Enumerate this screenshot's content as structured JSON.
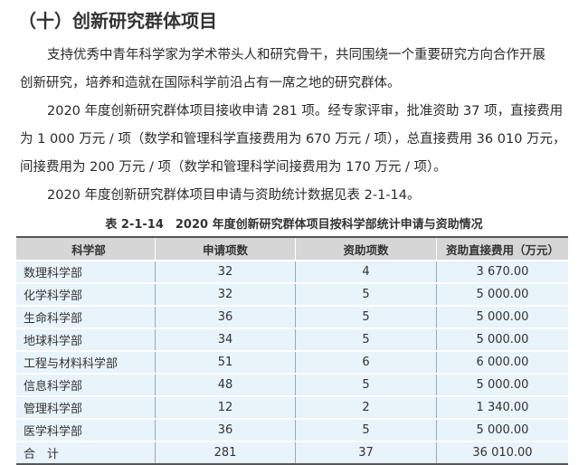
{
  "heading": "（十）创新研究群体项目",
  "paragraphs": [
    "支持优秀中青年科学家为学术带头人和研究骨干，共同围绕一个重要研究方向合作开展",
    "创新研究，培养和造就在国际科学前沿占有一席之地的研究群体。",
    "2020 年度创新研究群体项目接收申请 281 项。经专家评审，批准资助 37 项，直接费用",
    "为 1 000 万元 / 项（数学和管理科学直接费用为 670 万元 / 项），总直接费用 36 010 万元，",
    "间接费用为 200 万元 / 项（数学和管理科学间接费用为 170 万元 / 项）。",
    "2020 年度创新研究群体项目申请与资助统计数据见表 2-1-14。"
  ],
  "table": {
    "caption": "表 2-1-14　2020 年度创新研究群体项目按科学部统计申请与资助情况",
    "headers": [
      "科学部",
      "申请项数",
      "资助项数",
      "资助直接费用（万元）"
    ],
    "rows": [
      [
        "数理科学部",
        "32",
        "4",
        "3 670.00"
      ],
      [
        "化学科学部",
        "32",
        "5",
        "5 000.00"
      ],
      [
        "生命科学部",
        "36",
        "5",
        "5 000.00"
      ],
      [
        "地球科学部",
        "34",
        "5",
        "5 000.00"
      ],
      [
        "工程与材料科学部",
        "51",
        "6",
        "6 000.00"
      ],
      [
        "信息科学部",
        "48",
        "5",
        "5 000.00"
      ],
      [
        "管理科学部",
        "12",
        "2",
        "1 340.00"
      ],
      [
        "医学科学部",
        "36",
        "5",
        "5 000.00"
      ],
      [
        "合　计",
        "281",
        "37",
        "36 010.00"
      ]
    ]
  }
}
